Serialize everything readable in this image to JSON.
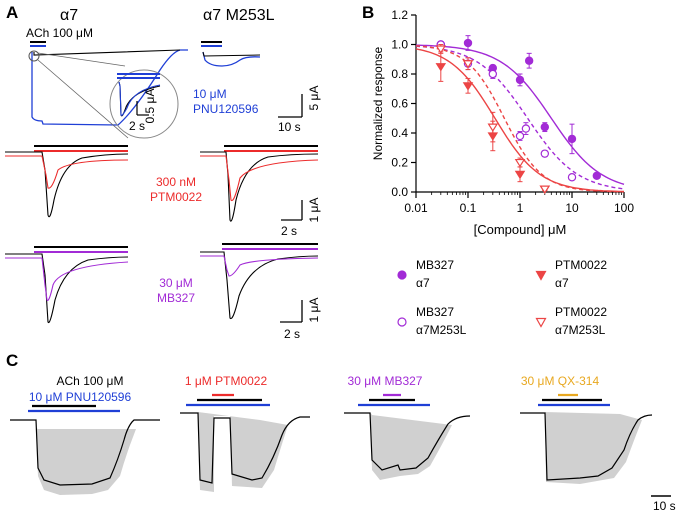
{
  "panels": {
    "A": {
      "label": "A",
      "col1_title": "α7",
      "col2_title": "α7 M253L",
      "ach_label": "ACh 100 μM",
      "pnu_line1": "10 μM",
      "pnu_line2": "PNU120596",
      "ptm_line1": "300 nM",
      "ptm_line2": "PTM0022",
      "mb_line1": "30 μM",
      "mb_line2": "MB327",
      "scalebars": {
        "inset_y": "0.5 μA",
        "inset_x": "2 s",
        "row1_y": "5 μA",
        "row1_x": "10 s",
        "row2_y": "1 μA",
        "row2_x": "2 s",
        "row3_y": "1 μA",
        "row3_x": "2 s"
      }
    },
    "B": {
      "label": "B",
      "legend": [
        {
          "line1": "MB327",
          "line2": "α7",
          "marker": "filled-circle",
          "color": "#a22bd6"
        },
        {
          "line1": "PTM0022",
          "line2": "α7",
          "marker": "filled-triangle-down",
          "color": "#ec4545"
        },
        {
          "line1": "MB327",
          "line2": "α7M253L",
          "marker": "open-circle",
          "color": "#a22bd6"
        },
        {
          "line1": "PTM0022",
          "line2": "α7M253L",
          "marker": "open-triangle-down",
          "color": "#ec4545"
        }
      ]
    },
    "C": {
      "label": "C",
      "ach": "ACh 100 μM",
      "pnu": "10 μM PNU120596",
      "ptm": "1 μM PTM0022",
      "mb": "30 μM MB327",
      "qx": "30 μM QX-314",
      "scale_x": "10 s"
    }
  },
  "colors": {
    "pnu": "#1f3fd6",
    "ptm": "#ec2b2b",
    "mb": "#a22bd6",
    "qx": "#e8a820",
    "black": "#000000",
    "sem": "#d0d0d0"
  },
  "chart_data": {
    "type": "scatter",
    "xlabel": "[Compound] μM",
    "ylabel": "Normalized response",
    "xscale": "log",
    "xlim": [
      0.01,
      100
    ],
    "ylim": [
      0.0,
      1.2
    ],
    "xticks": [
      "0.01",
      "0.1",
      "1",
      "10",
      "100"
    ],
    "yticks": [
      "0.0",
      "0.2",
      "0.4",
      "0.6",
      "0.8",
      "1.0",
      "1.2"
    ],
    "legend_position": "below",
    "series": [
      {
        "name": "MB327 α7",
        "color": "#a22bd6",
        "marker": "filled-circle",
        "line": "solid",
        "x": [
          0.03,
          0.1,
          0.3,
          1,
          1.5,
          3,
          10,
          30
        ],
        "y": [
          1.0,
          1.01,
          0.84,
          0.76,
          0.89,
          0.44,
          0.36,
          0.11
        ],
        "err": [
          0.02,
          0.05,
          0.02,
          0.04,
          0.05,
          0.03,
          0.1,
          0.01
        ],
        "fit_ic50": 4.0,
        "fit_hill": 0.9
      },
      {
        "name": "MB327 α7M253L",
        "color": "#a22bd6",
        "marker": "open-circle",
        "line": "dashed",
        "x": [
          0.03,
          0.1,
          0.3,
          1,
          1.3,
          3,
          10
        ],
        "y": [
          1.0,
          0.87,
          0.8,
          0.38,
          0.43,
          0.26,
          0.1
        ],
        "err": [
          0.02,
          0.04,
          0.03,
          0.03,
          0.04,
          0.02,
          0.01
        ],
        "fit_ic50": 1.4,
        "fit_hill": 0.9
      },
      {
        "name": "PTM0022 α7",
        "color": "#ec4545",
        "marker": "filled-triangle-down",
        "line": "solid",
        "x": [
          0.03,
          0.1,
          0.3,
          1,
          3
        ],
        "y": [
          0.85,
          0.72,
          0.38,
          0.12,
          0.02
        ],
        "err": [
          0.1,
          0.05,
          0.1,
          0.05,
          0.01
        ],
        "fit_ic50": 0.33,
        "fit_hill": 1.0
      },
      {
        "name": "PTM0022 α7M253L",
        "color": "#ec4545",
        "marker": "open-triangle-down",
        "line": "dashed",
        "x": [
          0.03,
          0.1,
          0.3,
          1,
          3
        ],
        "y": [
          0.97,
          0.87,
          0.44,
          0.2,
          0.02
        ],
        "err": [
          0.03,
          0.04,
          0.1,
          0.03,
          0.01
        ],
        "fit_ic50": 0.5,
        "fit_hill": 1.2
      }
    ]
  }
}
